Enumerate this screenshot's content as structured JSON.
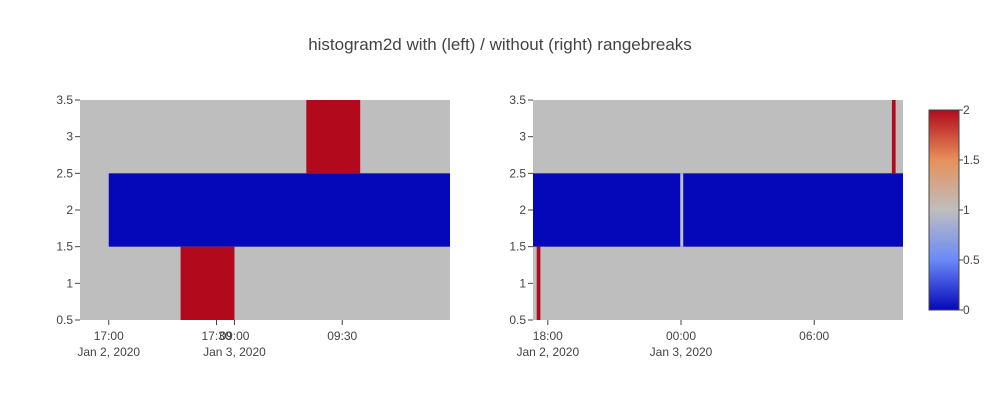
{
  "chart_data": {
    "type": "heatmap",
    "title": "histogram2d with (left) / without (right) rangebreaks",
    "y_ticks": [
      "0.5",
      "1",
      "1.5",
      "2",
      "2.5",
      "3",
      "3.5"
    ],
    "y_range": [
      0.5,
      3.5
    ],
    "colorscale": {
      "colors": [
        "#0508b8",
        "#6a89f7",
        "#bebebe",
        "#e6915a",
        "#b20a1c"
      ],
      "background": "#bebebe",
      "ticks": [
        "0",
        "0.5",
        "1",
        "1.5",
        "2"
      ],
      "range": [
        0,
        2
      ]
    },
    "panels": [
      {
        "name": "left",
        "rangebreaks": true,
        "x_ticks": [
          {
            "label": "17:00",
            "sublabel": "Jan 2, 2020"
          },
          {
            "label": "17:30",
            "sublabel": ""
          },
          {
            "label": "09:00",
            "sublabel": "Jan 3, 2020"
          },
          {
            "label": "09:30",
            "sublabel": ""
          }
        ],
        "cells": [
          {
            "x0": "2020-01-02 17:00",
            "x1": "2020-01-03 10:00",
            "y0": 1.5,
            "y1": 2.5,
            "z": 0
          },
          {
            "x0": "2020-01-02 17:20",
            "x1": "2020-01-02 17:35",
            "y0": 0.5,
            "y1": 1.5,
            "z": 2
          },
          {
            "x0": "2020-01-03 09:20",
            "x1": "2020-01-03 09:35",
            "y0": 2.5,
            "y1": 3.5,
            "z": 2
          }
        ]
      },
      {
        "name": "right",
        "rangebreaks": false,
        "x_ticks": [
          {
            "label": "18:00",
            "sublabel": "Jan 2, 2020"
          },
          {
            "label": "00:00",
            "sublabel": "Jan 3, 2020"
          },
          {
            "label": "06:00",
            "sublabel": ""
          }
        ],
        "cells": [
          {
            "x0": "2020-01-02 17:20",
            "x1": "2020-01-03 10:00",
            "y0": 1.5,
            "y1": 2.5,
            "z": 0
          },
          {
            "x0": "2020-01-02 17:30",
            "x1": "2020-01-02 17:40",
            "y0": 0.5,
            "y1": 1.5,
            "z": 2
          },
          {
            "x0": "2020-01-03 09:30",
            "x1": "2020-01-03 09:40",
            "y0": 2.5,
            "y1": 3.5,
            "z": 2
          },
          {
            "x0": "2020-01-02 23:58",
            "x1": "2020-01-03 00:06",
            "y0": 1.5,
            "y1": 2.5,
            "z": 1
          }
        ]
      }
    ]
  }
}
